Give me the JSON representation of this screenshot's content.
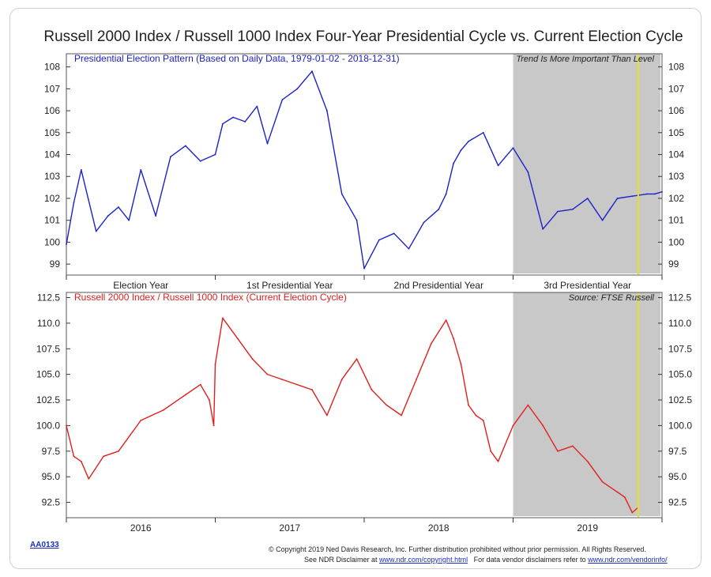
{
  "title": "Russell 2000 Index / Russell 1000 Index Four-Year Presidential Cycle vs. Current Election Cycle",
  "chart_code": "AA0133",
  "footer": {
    "line1": "© Copyright 2019 Ned Davis Research, Inc. Further distribution prohibited without prior permission. All Rights Reserved.",
    "line2_prefix": "See NDR Disclaimer at ",
    "line2_link1": "www.ndr.com/copyright.html",
    "line2_mid": "   For data vendor disclaimers refer to ",
    "line2_link2": "www.ndr.com/vendorinfo/"
  },
  "colors": {
    "top_line": "#1c22c8",
    "bottom_line": "#e0201c",
    "shade": "#c8c8c8",
    "marker": "#e6e022",
    "frame": "#555555"
  },
  "chart_data": [
    {
      "type": "line",
      "title": "Presidential Election Pattern (Based on Daily Data, 1979-01-02 - 2018-12-31)",
      "annotation": "Trend Is More Important Than Level",
      "ylim": [
        98.5,
        108.6
      ],
      "y_ticks": [
        99,
        100,
        101,
        102,
        103,
        104,
        105,
        106,
        107,
        108
      ],
      "x_labels": [
        "Election Year",
        "1st Presidential Year",
        "2nd Presidential Year",
        "3rd Presidential Year"
      ],
      "shaded_region": "3rd Presidential Year",
      "x": [
        0,
        0.05,
        0.1,
        0.2,
        0.28,
        0.35,
        0.42,
        0.5,
        0.6,
        0.7,
        0.8,
        0.9,
        1.0,
        1.05,
        1.12,
        1.2,
        1.28,
        1.35,
        1.45,
        1.55,
        1.65,
        1.75,
        1.85,
        1.95,
        2.0,
        2.1,
        2.2,
        2.3,
        2.4,
        2.5,
        2.55,
        2.6,
        2.65,
        2.7,
        2.8,
        2.9,
        3.0,
        3.1,
        3.2,
        3.3,
        3.4,
        3.5,
        3.6,
        3.65,
        3.7,
        3.8,
        3.9,
        3.95,
        4.0
      ],
      "y": [
        99.9,
        101.8,
        103.3,
        100.5,
        101.2,
        101.6,
        101.0,
        103.3,
        101.2,
        103.9,
        104.4,
        103.7,
        104.0,
        105.4,
        105.7,
        105.5,
        106.2,
        104.5,
        106.5,
        107.0,
        107.8,
        106.0,
        102.2,
        101.0,
        98.8,
        100.1,
        100.4,
        99.7,
        100.9,
        101.5,
        102.2,
        103.6,
        104.2,
        104.6,
        105.0,
        103.5,
        104.3,
        103.2,
        100.6,
        101.4,
        101.5,
        102.0,
        101.0,
        101.5,
        102.0,
        102.1,
        102.2,
        102.2,
        102.3
      ],
      "current_marker_x": 3.84
    },
    {
      "type": "line",
      "title": "Russell 2000 Index / Russell 1000 Index (Current Election Cycle)",
      "source": "Source:    FTSE Russell",
      "ylim": [
        91,
        113
      ],
      "y_ticks": [
        92.5,
        95.0,
        97.5,
        100.0,
        102.5,
        105.0,
        107.5,
        110.0,
        112.5
      ],
      "x_labels": [
        "2016",
        "2017",
        "2018",
        "2019"
      ],
      "x": [
        0,
        0.05,
        0.1,
        0.15,
        0.25,
        0.35,
        0.5,
        0.65,
        0.8,
        0.9,
        0.96,
        0.99,
        1.0,
        1.05,
        1.15,
        1.25,
        1.35,
        1.45,
        1.55,
        1.65,
        1.75,
        1.85,
        1.95,
        2.05,
        2.15,
        2.25,
        2.35,
        2.45,
        2.55,
        2.6,
        2.65,
        2.7,
        2.75,
        2.8,
        2.85,
        2.9,
        3.0,
        3.1,
        3.2,
        3.3,
        3.4,
        3.5,
        3.6,
        3.7,
        3.75,
        3.8,
        3.84
      ],
      "y": [
        100.0,
        97.0,
        96.5,
        94.8,
        97.0,
        97.5,
        100.5,
        101.5,
        103.0,
        104.0,
        102.5,
        100.0,
        106.0,
        110.5,
        108.5,
        106.5,
        105.0,
        104.5,
        104.0,
        103.5,
        101.0,
        104.5,
        106.5,
        103.5,
        102.0,
        101.0,
        104.5,
        108.0,
        110.3,
        108.5,
        106.0,
        102.0,
        101.0,
        100.5,
        97.5,
        96.5,
        100.0,
        102.0,
        100.0,
        97.5,
        98.0,
        96.5,
        94.5,
        93.5,
        93.0,
        91.5,
        92.0
      ],
      "current_marker_x": 3.84
    }
  ]
}
